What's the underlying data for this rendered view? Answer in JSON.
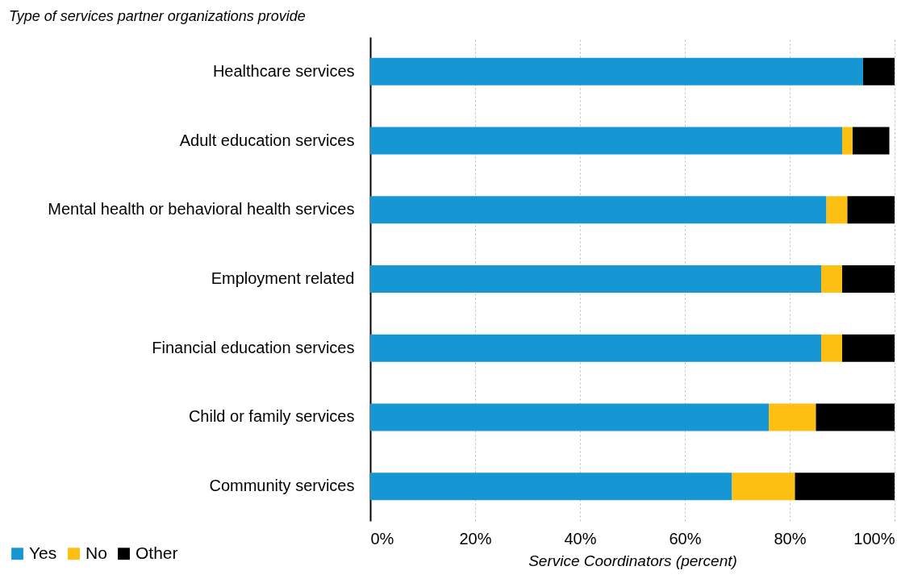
{
  "chart_data": {
    "type": "bar",
    "orientation": "horizontal",
    "stacked": true,
    "title": "Type of services partner organizations provide",
    "xlabel": "Service Coordinators (percent)",
    "categories": [
      "Healthcare services",
      "Adult education services",
      "Mental health or behavioral health services",
      "Employment related",
      "Financial education services",
      "Child or family services",
      "Community services"
    ],
    "series": [
      {
        "name": "Yes",
        "color": "#1696d2",
        "values": [
          94,
          90,
          87,
          86,
          86,
          76,
          69
        ]
      },
      {
        "name": "No",
        "color": "#fdbf11",
        "values": [
          0,
          2,
          4,
          4,
          4,
          9,
          12
        ]
      },
      {
        "name": "Other",
        "color": "#000000",
        "values": [
          6,
          7,
          9,
          10,
          10,
          15,
          19
        ]
      }
    ],
    "xlim": [
      0,
      100
    ],
    "xticks": [
      {
        "value": 0,
        "label": "0%"
      },
      {
        "value": 20,
        "label": "20%"
      },
      {
        "value": 40,
        "label": "40%"
      },
      {
        "value": 60,
        "label": "60%"
      },
      {
        "value": 80,
        "label": "80%"
      },
      {
        "value": 100,
        "label": "100%"
      }
    ],
    "grid": "x",
    "legend": "bottom left"
  }
}
